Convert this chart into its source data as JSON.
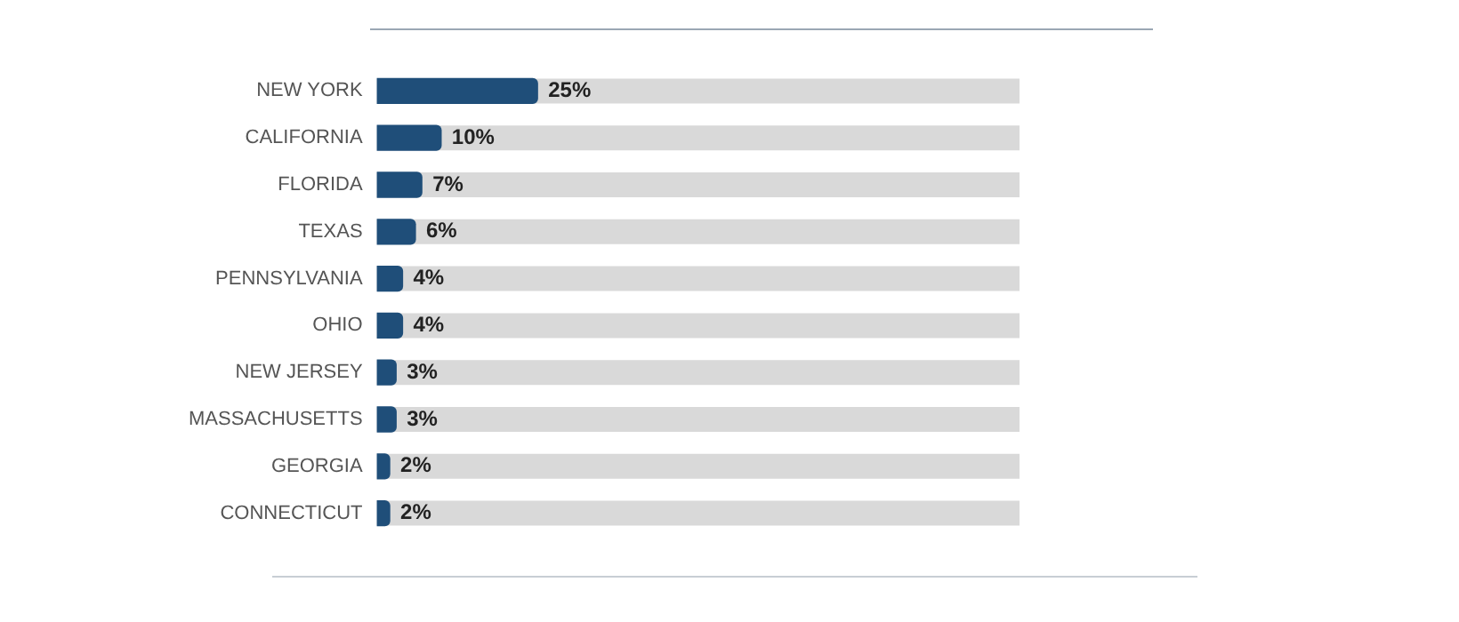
{
  "chart_data": {
    "type": "bar",
    "orientation": "horizontal",
    "categories": [
      "NEW YORK",
      "CALIFORNIA",
      "FLORIDA",
      "TEXAS",
      "PENNSYLVANIA",
      "OHIO",
      "NEW JERSEY",
      "MASSACHUSETTS",
      "GEORGIA",
      "CONNECTICUT"
    ],
    "values": [
      25,
      10,
      7,
      6,
      4,
      4,
      3,
      3,
      2,
      2
    ],
    "value_labels": [
      "25%",
      "10%",
      "7%",
      "6%",
      "4%",
      "4%",
      "3%",
      "3%",
      "2%",
      "2%"
    ],
    "color": "#1f4e79",
    "xlim": [
      0,
      100
    ],
    "tick_labels": "y",
    "grid": false,
    "legend": false
  }
}
